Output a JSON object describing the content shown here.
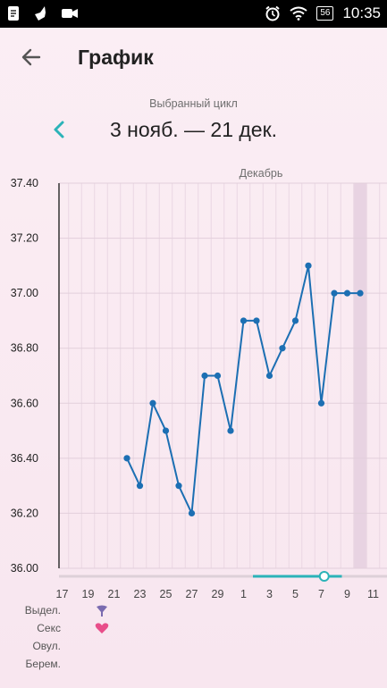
{
  "status_bar": {
    "time": "10:35",
    "battery": "56"
  },
  "header": {
    "title": "График",
    "back_icon": "arrow-back-icon"
  },
  "cycle": {
    "label": "Выбранный цикл",
    "range": "3 нояб. — 21 дек."
  },
  "legend": {
    "rows": [
      "Выдел.",
      "Секс",
      "Овул.",
      "Берем."
    ],
    "markers": [
      {
        "row": 0,
        "icon": "discharge-icon",
        "x": 22,
        "color": "#7a6bb0"
      },
      {
        "row": 1,
        "icon": "heart-icon",
        "x": 22,
        "color": "#e84e8a"
      }
    ]
  },
  "colors": {
    "line": "#1c6fb3",
    "slider": "#2bb3b8",
    "accent": "#2bb3b8"
  },
  "chart_data": {
    "type": "line",
    "xlabel": "",
    "ylabel": "",
    "month_label": "Декабрь",
    "ylim": [
      36.0,
      37.4
    ],
    "yticks": [
      "37.40",
      "37.20",
      "37.00",
      "36.80",
      "36.60",
      "36.40",
      "36.20",
      "36.00"
    ],
    "xticks": [
      "17",
      "19",
      "21",
      "27",
      "29",
      "1",
      "3",
      "5",
      "7",
      "9",
      "11"
    ],
    "xticks_full": [
      {
        "label": "17",
        "i": -5
      },
      {
        "label": "19",
        "i": -3
      },
      {
        "label": "21",
        "i": -1
      },
      {
        "label": "23",
        "i": 1
      },
      {
        "label": "25",
        "i": 3
      },
      {
        "label": "27",
        "i": 5
      },
      {
        "label": "29",
        "i": 7
      },
      {
        "label": "1",
        "i": 9
      },
      {
        "label": "3",
        "i": 11
      },
      {
        "label": "5",
        "i": 13
      },
      {
        "label": "7",
        "i": 15
      },
      {
        "label": "9",
        "i": 17
      },
      {
        "label": "11",
        "i": 19
      }
    ],
    "series": [
      {
        "name": "",
        "points": [
          {
            "i": 0,
            "y": 36.4
          },
          {
            "i": 1,
            "y": 36.3
          },
          {
            "i": 2,
            "y": 36.6
          },
          {
            "i": 3,
            "y": 36.5
          },
          {
            "i": 4,
            "y": 36.3
          },
          {
            "i": 5,
            "y": 36.2
          },
          {
            "i": 6,
            "y": 36.7
          },
          {
            "i": 7,
            "y": 36.7
          },
          {
            "i": 8,
            "y": 36.5
          },
          {
            "i": 9,
            "y": 36.9
          },
          {
            "i": 10,
            "y": 36.9
          },
          {
            "i": 11,
            "y": 36.7
          },
          {
            "i": 12,
            "y": 36.8
          },
          {
            "i": 13,
            "y": 36.9
          },
          {
            "i": 14,
            "y": 37.1
          },
          {
            "i": 15,
            "y": 36.6
          },
          {
            "i": 16,
            "y": 37.0
          },
          {
            "i": 17,
            "y": 37.0
          },
          {
            "i": 18,
            "y": 37.0
          }
        ]
      }
    ],
    "grid": true,
    "highlight_day_i": 18,
    "slider": {
      "start_i": 10,
      "end_i": 17,
      "handle_i": 15.5
    }
  }
}
